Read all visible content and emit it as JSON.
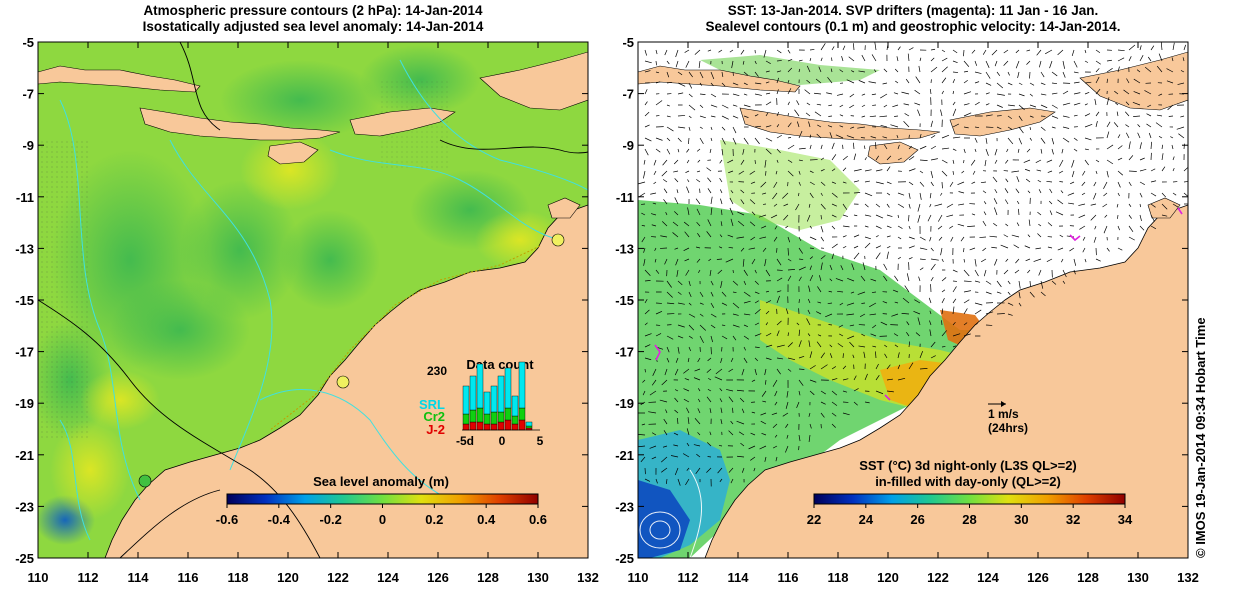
{
  "left_panel": {
    "title_line1": "Atmospheric pressure contours (2 hPa): 14-Jan-2014",
    "title_line2": "Isostatically adjusted sea level anomaly: 14-Jan-2014",
    "colorbar_title": "Sea level anomaly (m)",
    "colorbar_ticks": [
      "-0.6",
      "-0.4",
      "-0.2",
      "0",
      "0.2",
      "0.4",
      "0.6"
    ],
    "colorbar_colors": [
      "#00005a",
      "#0030c0",
      "#00a0e8",
      "#20c890",
      "#70e040",
      "#e0e010",
      "#f0a000",
      "#e04000",
      "#900000"
    ],
    "inset": {
      "title": "Data count",
      "max_label": "230",
      "legend": [
        {
          "label": "SRL",
          "color": "#00e8f0"
        },
        {
          "label": "Cr2",
          "color": "#10d010"
        },
        {
          "label": "J-2",
          "color": "#e00000"
        }
      ],
      "x_ticks": [
        "-5d",
        "0",
        "5"
      ]
    }
  },
  "right_panel": {
    "title_line1": "SST: 13-Jan-2014. SVP drifters (magenta): 11 Jan - 16 Jan.",
    "title_line2": "Sealevel contours (0.1 m) and geostrophic velocity: 14-Jan-2014.",
    "scale_arrow_label": "1 m/s",
    "scale_arrow_sublabel": "(24hrs)",
    "colorbar_title_line1": "SST (°C)  3d night-only (L3S QL>=2)",
    "colorbar_title_line2": "in-filled with day-only (QL>=2)",
    "colorbar_ticks": [
      "22",
      "24",
      "26",
      "28",
      "30",
      "32",
      "34"
    ],
    "colorbar_colors": [
      "#00005a",
      "#0030c0",
      "#00a0e8",
      "#20c890",
      "#70e040",
      "#e0e010",
      "#f0a000",
      "#e04000",
      "#900000"
    ]
  },
  "axes": {
    "lat_ticks": [
      "-5",
      "-7",
      "-9",
      "-11",
      "-13",
      "-15",
      "-17",
      "-19",
      "-21",
      "-23",
      "-25"
    ],
    "lon_ticks": [
      "110",
      "112",
      "114",
      "116",
      "118",
      "120",
      "122",
      "124",
      "126",
      "128",
      "130",
      "132"
    ]
  },
  "credit": "© IMOS 19-Jan-2014 09:34 Hobart Time",
  "colors": {
    "land": "#f8c89a",
    "ocean_green": "#7cd848",
    "ocean_light": "#b0e830",
    "contour_cyan": "#40e0e0"
  }
}
